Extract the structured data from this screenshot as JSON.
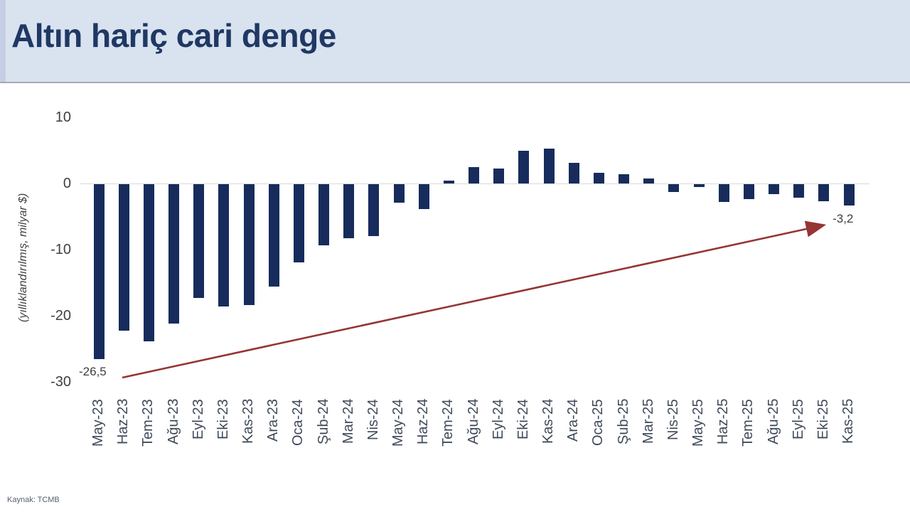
{
  "header": {
    "title": "Altın hariç cari denge"
  },
  "source": {
    "label": "Kaynak: TCMB"
  },
  "colors": {
    "bar": "#172c5c",
    "title_text": "#1f3864",
    "header_bg": "#d9e2ef",
    "arrow": "#943634",
    "axis_line": "#d9d9d9",
    "x_tick_text": "#3f4a5a",
    "y_tick_text": "#404040",
    "annotation_text": "#404040"
  },
  "chart_data": {
    "type": "bar",
    "title": "Altın hariç cari denge",
    "xlabel": "",
    "ylabel": "(yıllıklandırılmış, milyar $)",
    "ylim": [
      -30,
      10
    ],
    "yticks": [
      10,
      0,
      -10,
      -20,
      -30
    ],
    "grid": false,
    "legend": false,
    "categories": [
      "May-23",
      "Haz-23",
      "Tem-23",
      "Ağu-23",
      "Eyl-23",
      "Eki-23",
      "Kas-23",
      "Ara-23",
      "Oca-24",
      "Şub-24",
      "Mar-24",
      "Nis-24",
      "May-24",
      "Haz-24",
      "Tem-24",
      "Ağu-24",
      "Eyl-24",
      "Eki-24",
      "Kas-24",
      "Ara-24",
      "Oca-25",
      "Şub-25",
      "Mar-25",
      "Nis-25",
      "May-25",
      "Haz-25",
      "Tem-25",
      "Ağu-25",
      "Eyl-25",
      "Eki-25",
      "Kas-25"
    ],
    "values": [
      -26.5,
      -22.1,
      -23.8,
      -21.1,
      -17.2,
      -18.5,
      -18.3,
      -15.5,
      -11.8,
      -9.2,
      -8.2,
      -7.9,
      -2.8,
      -3.8,
      0.4,
      2.5,
      2.3,
      4.9,
      5.3,
      3.1,
      1.6,
      1.4,
      0.8,
      -1.2,
      -0.4,
      -2.7,
      -2.3,
      -1.5,
      -2.0,
      -2.6,
      -3.2
    ],
    "annotations": [
      {
        "text": "-26,5",
        "category": "May-23",
        "placement": "below-left"
      },
      {
        "text": "-3,2",
        "category": "Kas-25",
        "placement": "below-right"
      }
    ],
    "arrow": {
      "from_category": "May-23",
      "to_category": "Kas-25",
      "color": "#943634"
    }
  }
}
